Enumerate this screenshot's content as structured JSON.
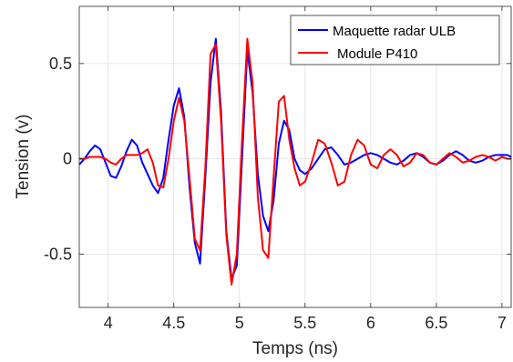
{
  "chart_data": {
    "type": "line",
    "title": "",
    "xlabel": "Temps (ns)",
    "ylabel": "Tension (v)",
    "xlim": [
      3.78,
      7.07
    ],
    "ylim": [
      -0.78,
      0.8
    ],
    "xticks": [
      4,
      4.5,
      5,
      5.5,
      6,
      6.5,
      7
    ],
    "yticks": [
      -0.5,
      0,
      0.5
    ],
    "xtick_labels": [
      "4",
      "4.5",
      "5",
      "5.5",
      "6",
      "6.5",
      "7"
    ],
    "ytick_labels": [
      "-0.5",
      "0",
      "0.5"
    ],
    "grid": true,
    "legend_position": "top-right",
    "series": [
      {
        "name": "Maquette radar ULB",
        "color": "#0000ff",
        "x": [
          3.78,
          3.82,
          3.86,
          3.9,
          3.94,
          3.98,
          4.02,
          4.06,
          4.1,
          4.14,
          4.18,
          4.22,
          4.26,
          4.3,
          4.34,
          4.38,
          4.42,
          4.46,
          4.5,
          4.54,
          4.58,
          4.62,
          4.66,
          4.7,
          4.74,
          4.78,
          4.82,
          4.86,
          4.9,
          4.94,
          4.98,
          5.02,
          5.06,
          5.1,
          5.14,
          5.18,
          5.22,
          5.26,
          5.3,
          5.34,
          5.38,
          5.42,
          5.46,
          5.5,
          5.55,
          5.6,
          5.65,
          5.7,
          5.75,
          5.8,
          5.85,
          5.9,
          5.95,
          6.0,
          6.05,
          6.1,
          6.15,
          6.2,
          6.25,
          6.3,
          6.35,
          6.4,
          6.45,
          6.5,
          6.55,
          6.6,
          6.65,
          6.7,
          6.75,
          6.8,
          6.85,
          6.9,
          6.95,
          7.0,
          7.04,
          7.07
        ],
        "values": [
          -0.03,
          0.0,
          0.04,
          0.07,
          0.05,
          -0.02,
          -0.09,
          -0.1,
          -0.04,
          0.04,
          0.1,
          0.07,
          -0.02,
          -0.08,
          -0.14,
          -0.18,
          -0.1,
          0.1,
          0.28,
          0.37,
          0.22,
          -0.15,
          -0.44,
          -0.55,
          -0.1,
          0.4,
          0.63,
          0.25,
          -0.38,
          -0.63,
          -0.56,
          0.0,
          0.57,
          0.35,
          -0.08,
          -0.3,
          -0.38,
          -0.22,
          0.08,
          0.2,
          0.15,
          0.0,
          -0.06,
          -0.08,
          -0.05,
          0.0,
          0.05,
          0.06,
          0.02,
          -0.03,
          -0.02,
          0.0,
          0.02,
          0.03,
          0.02,
          0.0,
          -0.02,
          -0.03,
          -0.01,
          0.02,
          0.03,
          0.01,
          -0.02,
          -0.03,
          -0.01,
          0.02,
          0.04,
          0.02,
          -0.01,
          -0.02,
          -0.01,
          0.01,
          0.02,
          0.02,
          0.02,
          0.01
        ]
      },
      {
        "name": "Module P410",
        "color": "#ff0000",
        "x": [
          3.78,
          3.82,
          3.86,
          3.9,
          3.94,
          3.98,
          4.02,
          4.06,
          4.1,
          4.14,
          4.18,
          4.22,
          4.26,
          4.3,
          4.34,
          4.38,
          4.42,
          4.46,
          4.5,
          4.54,
          4.58,
          4.62,
          4.66,
          4.7,
          4.74,
          4.78,
          4.82,
          4.86,
          4.9,
          4.94,
          4.98,
          5.02,
          5.06,
          5.1,
          5.14,
          5.18,
          5.22,
          5.26,
          5.3,
          5.34,
          5.38,
          5.42,
          5.46,
          5.5,
          5.55,
          5.6,
          5.65,
          5.7,
          5.75,
          5.8,
          5.85,
          5.9,
          5.95,
          6.0,
          6.05,
          6.1,
          6.15,
          6.2,
          6.25,
          6.3,
          6.35,
          6.4,
          6.45,
          6.5,
          6.55,
          6.6,
          6.65,
          6.7,
          6.75,
          6.8,
          6.85,
          6.9,
          6.95,
          7.0,
          7.04,
          7.07
        ],
        "values": [
          0.0,
          0.0,
          0.01,
          0.01,
          0.01,
          0.0,
          -0.02,
          -0.03,
          0.0,
          0.02,
          0.02,
          0.02,
          0.03,
          0.05,
          -0.02,
          -0.14,
          -0.15,
          0.0,
          0.2,
          0.32,
          0.2,
          -0.1,
          -0.42,
          -0.48,
          -0.05,
          0.55,
          0.6,
          0.2,
          -0.4,
          -0.66,
          -0.5,
          0.1,
          0.63,
          0.4,
          -0.2,
          -0.48,
          -0.52,
          -0.1,
          0.3,
          0.33,
          0.1,
          -0.05,
          -0.14,
          -0.12,
          -0.02,
          0.1,
          0.08,
          -0.02,
          -0.14,
          -0.12,
          0.02,
          0.1,
          0.07,
          -0.03,
          -0.05,
          0.02,
          0.05,
          0.02,
          -0.04,
          -0.02,
          0.03,
          0.02,
          -0.02,
          -0.03,
          0.0,
          0.03,
          0.01,
          -0.02,
          -0.01,
          0.01,
          0.02,
          0.01,
          -0.01,
          0.01,
          0.0,
          0.0
        ]
      }
    ]
  }
}
